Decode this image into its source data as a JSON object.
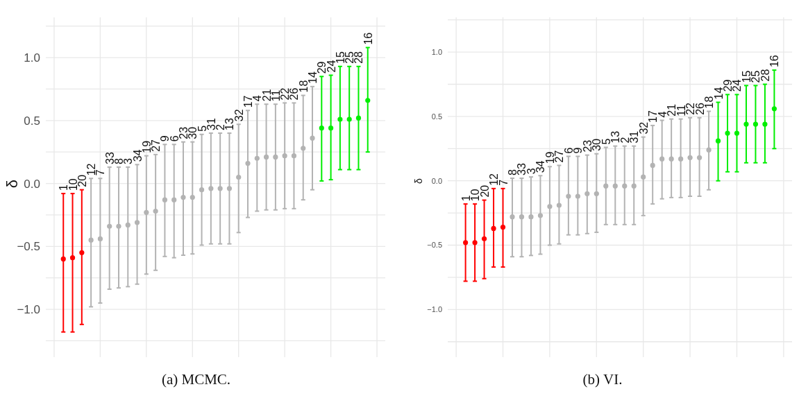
{
  "chart_data": [
    {
      "type": "scatter",
      "title": "(a) MCMC.",
      "ylabel": "δ",
      "grid": true,
      "marker": "circle",
      "categories": [
        "1",
        "10",
        "20",
        "12",
        "7",
        "33",
        "8",
        "3",
        "34",
        "19",
        "27",
        "9",
        "6",
        "23",
        "30",
        "5",
        "31",
        "2",
        "13",
        "32",
        "17",
        "4",
        "21",
        "11",
        "22",
        "26",
        "18",
        "14",
        "29",
        "24",
        "15",
        "25",
        "28",
        "16"
      ],
      "values": [
        -0.6,
        -0.59,
        -0.55,
        -0.45,
        -0.44,
        -0.34,
        -0.34,
        -0.33,
        -0.31,
        -0.23,
        -0.22,
        -0.13,
        -0.13,
        -0.11,
        -0.11,
        -0.05,
        -0.04,
        -0.04,
        -0.04,
        0.05,
        0.16,
        0.2,
        0.21,
        0.21,
        0.22,
        0.22,
        0.28,
        0.36,
        0.44,
        0.44,
        0.51,
        0.51,
        0.52,
        0.66
      ],
      "errors": [
        [
          -1.18,
          -0.08
        ],
        [
          -1.18,
          -0.08
        ],
        [
          -1.12,
          -0.05
        ],
        [
          -0.98,
          0.04
        ],
        [
          -0.95,
          0.04
        ],
        [
          -0.84,
          0.13
        ],
        [
          -0.83,
          0.13
        ],
        [
          -0.82,
          0.13
        ],
        [
          -0.8,
          0.15
        ],
        [
          -0.72,
          0.22
        ],
        [
          -0.69,
          0.23
        ],
        [
          -0.58,
          0.31
        ],
        [
          -0.59,
          0.31
        ],
        [
          -0.57,
          0.33
        ],
        [
          -0.56,
          0.33
        ],
        [
          -0.49,
          0.39
        ],
        [
          -0.48,
          0.4
        ],
        [
          -0.48,
          0.4
        ],
        [
          -0.48,
          0.4
        ],
        [
          -0.39,
          0.47
        ],
        [
          -0.27,
          0.58
        ],
        [
          -0.22,
          0.63
        ],
        [
          -0.21,
          0.63
        ],
        [
          -0.21,
          0.63
        ],
        [
          -0.2,
          0.64
        ],
        [
          -0.2,
          0.64
        ],
        [
          -0.13,
          0.7
        ],
        [
          -0.05,
          0.77
        ],
        [
          0.02,
          0.85
        ],
        [
          0.03,
          0.86
        ],
        [
          0.11,
          0.93
        ],
        [
          0.11,
          0.93
        ],
        [
          0.11,
          0.93
        ],
        [
          0.25,
          1.08
        ]
      ],
      "colors": [
        "#ff0000",
        "#ff0000",
        "#ff0000",
        "#b3b3b3",
        "#b3b3b3",
        "#b3b3b3",
        "#b3b3b3",
        "#b3b3b3",
        "#b3b3b3",
        "#b3b3b3",
        "#b3b3b3",
        "#b3b3b3",
        "#b3b3b3",
        "#b3b3b3",
        "#b3b3b3",
        "#b3b3b3",
        "#b3b3b3",
        "#b3b3b3",
        "#b3b3b3",
        "#b3b3b3",
        "#b3b3b3",
        "#b3b3b3",
        "#b3b3b3",
        "#b3b3b3",
        "#b3b3b3",
        "#b3b3b3",
        "#b3b3b3",
        "#b3b3b3",
        "#00ee00",
        "#00ee00",
        "#00ee00",
        "#00ee00",
        "#00ee00",
        "#00ee00"
      ],
      "ylim": [
        -1.38,
        1.32
      ],
      "yticks": [
        {
          "value": -1.25,
          "label": null
        },
        {
          "value": -1.0,
          "label": "−1.0"
        },
        {
          "value": -0.75,
          "label": null
        },
        {
          "value": -0.5,
          "label": "−0.5"
        },
        {
          "value": -0.25,
          "label": null
        },
        {
          "value": 0,
          "label": "0.0"
        },
        {
          "value": 0.25,
          "label": null
        },
        {
          "value": 0.5,
          "label": "0.5"
        },
        {
          "value": 0.75,
          "label": null
        },
        {
          "value": 1.0,
          "label": "1.0"
        },
        {
          "value": 1.25,
          "label": null
        }
      ]
    },
    {
      "type": "scatter",
      "title": "(b) VI.",
      "ylabel": "δ",
      "grid": true,
      "marker": "circle",
      "categories": [
        "1",
        "10",
        "20",
        "12",
        "7",
        "8",
        "33",
        "3",
        "34",
        "19",
        "27",
        "6",
        "9",
        "23",
        "30",
        "5",
        "13",
        "2",
        "31",
        "32",
        "17",
        "4",
        "21",
        "11",
        "22",
        "26",
        "18",
        "14",
        "29",
        "24",
        "15",
        "25",
        "28",
        "16"
      ],
      "values": [
        -0.48,
        -0.48,
        -0.45,
        -0.37,
        -0.36,
        -0.28,
        -0.28,
        -0.28,
        -0.27,
        -0.2,
        -0.19,
        -0.12,
        -0.12,
        -0.1,
        -0.1,
        -0.04,
        -0.04,
        -0.04,
        -0.04,
        0.03,
        0.12,
        0.17,
        0.17,
        0.17,
        0.18,
        0.18,
        0.24,
        0.31,
        0.37,
        0.37,
        0.44,
        0.44,
        0.44,
        0.56
      ],
      "errors": [
        [
          -0.78,
          -0.18
        ],
        [
          -0.78,
          -0.18
        ],
        [
          -0.76,
          -0.15
        ],
        [
          -0.67,
          -0.06
        ],
        [
          -0.67,
          -0.06
        ],
        [
          -0.59,
          0.02
        ],
        [
          -0.59,
          0.02
        ],
        [
          -0.58,
          0.03
        ],
        [
          -0.57,
          0.04
        ],
        [
          -0.5,
          0.11
        ],
        [
          -0.49,
          0.12
        ],
        [
          -0.42,
          0.19
        ],
        [
          -0.42,
          0.19
        ],
        [
          -0.41,
          0.2
        ],
        [
          -0.4,
          0.21
        ],
        [
          -0.34,
          0.26
        ],
        [
          -0.34,
          0.27
        ],
        [
          -0.34,
          0.27
        ],
        [
          -0.34,
          0.27
        ],
        [
          -0.27,
          0.34
        ],
        [
          -0.18,
          0.43
        ],
        [
          -0.14,
          0.47
        ],
        [
          -0.13,
          0.48
        ],
        [
          -0.13,
          0.48
        ],
        [
          -0.12,
          0.49
        ],
        [
          -0.12,
          0.49
        ],
        [
          -0.07,
          0.54
        ],
        [
          0.0,
          0.61
        ],
        [
          0.07,
          0.67
        ],
        [
          0.07,
          0.67
        ],
        [
          0.14,
          0.74
        ],
        [
          0.14,
          0.74
        ],
        [
          0.14,
          0.75
        ],
        [
          0.25,
          0.86
        ]
      ],
      "colors": [
        "#ff0000",
        "#ff0000",
        "#ff0000",
        "#ff0000",
        "#ff0000",
        "#b3b3b3",
        "#b3b3b3",
        "#b3b3b3",
        "#b3b3b3",
        "#b3b3b3",
        "#b3b3b3",
        "#b3b3b3",
        "#b3b3b3",
        "#b3b3b3",
        "#b3b3b3",
        "#b3b3b3",
        "#b3b3b3",
        "#b3b3b3",
        "#b3b3b3",
        "#b3b3b3",
        "#b3b3b3",
        "#b3b3b3",
        "#b3b3b3",
        "#b3b3b3",
        "#b3b3b3",
        "#b3b3b3",
        "#b3b3b3",
        "#00ee00",
        "#00ee00",
        "#00ee00",
        "#00ee00",
        "#00ee00",
        "#00ee00",
        "#00ee00"
      ],
      "ylim": [
        -1.37,
        1.27
      ],
      "yticks": [
        {
          "value": -1.25,
          "label": null
        },
        {
          "value": -1.0,
          "label": "−1.0"
        },
        {
          "value": -0.75,
          "label": null
        },
        {
          "value": -0.5,
          "label": "−0.5"
        },
        {
          "value": -0.25,
          "label": null
        },
        {
          "value": 0,
          "label": "0.0"
        },
        {
          "value": 0.25,
          "label": null
        },
        {
          "value": 0.5,
          "label": "0.5"
        },
        {
          "value": 0.75,
          "label": null
        },
        {
          "value": 1.0,
          "label": "1.0"
        },
        {
          "value": 1.25,
          "label": null
        }
      ]
    }
  ]
}
